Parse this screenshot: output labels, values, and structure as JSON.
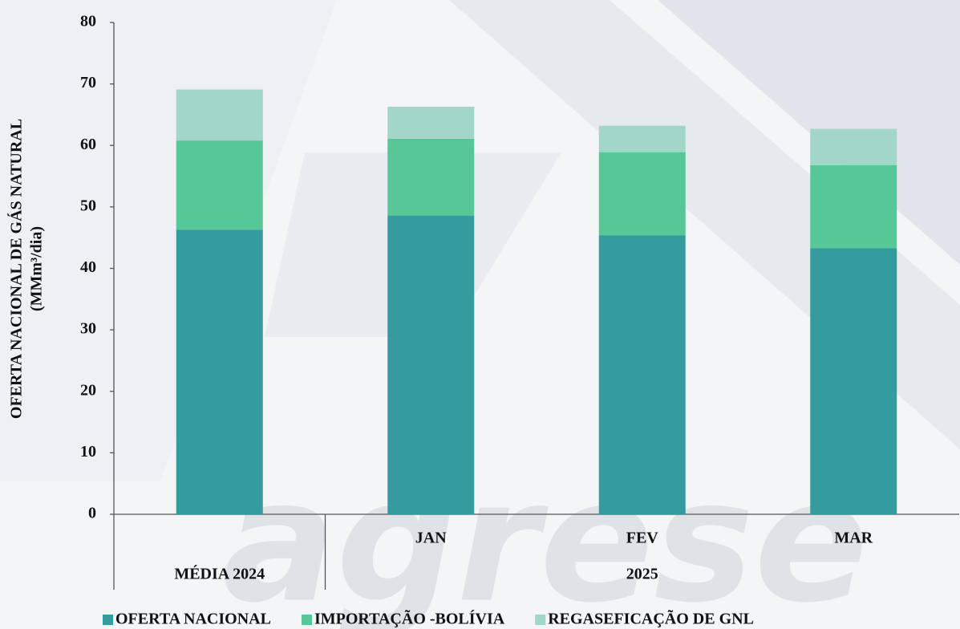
{
  "chart_data": {
    "type": "stacked_bar",
    "y_label": [
      "OFERTA NACIONAL DE GÁS NATURAL",
      "(MMm³/dia)"
    ],
    "categories": [
      "MÉDIA 2024",
      "JAN",
      "FEV",
      "MAR"
    ],
    "x_groups": [
      {
        "label": "2025",
        "categories": [
          "JAN",
          "FEV",
          "MAR"
        ]
      }
    ],
    "series": [
      {
        "name": "OFERTA NACIONAL",
        "color": "#349c9e",
        "values": [
          46.3,
          48.6,
          45.4,
          43.3
        ]
      },
      {
        "name": "IMPORTAÇÃO -BOLÍVIA",
        "color": "#56c797",
        "values": [
          14.5,
          12.5,
          13.5,
          13.5
        ]
      },
      {
        "name": "REGASEFICAÇÃO DE GNL",
        "color": "#a1d6c9",
        "values": [
          8.3,
          5.2,
          4.3,
          5.9
        ]
      }
    ],
    "ylim": [
      0,
      80
    ],
    "yticks": [
      0,
      10,
      20,
      30,
      40,
      50,
      60,
      70,
      80
    ],
    "grid": false,
    "legend": "bottom",
    "watermark": "agrese"
  }
}
